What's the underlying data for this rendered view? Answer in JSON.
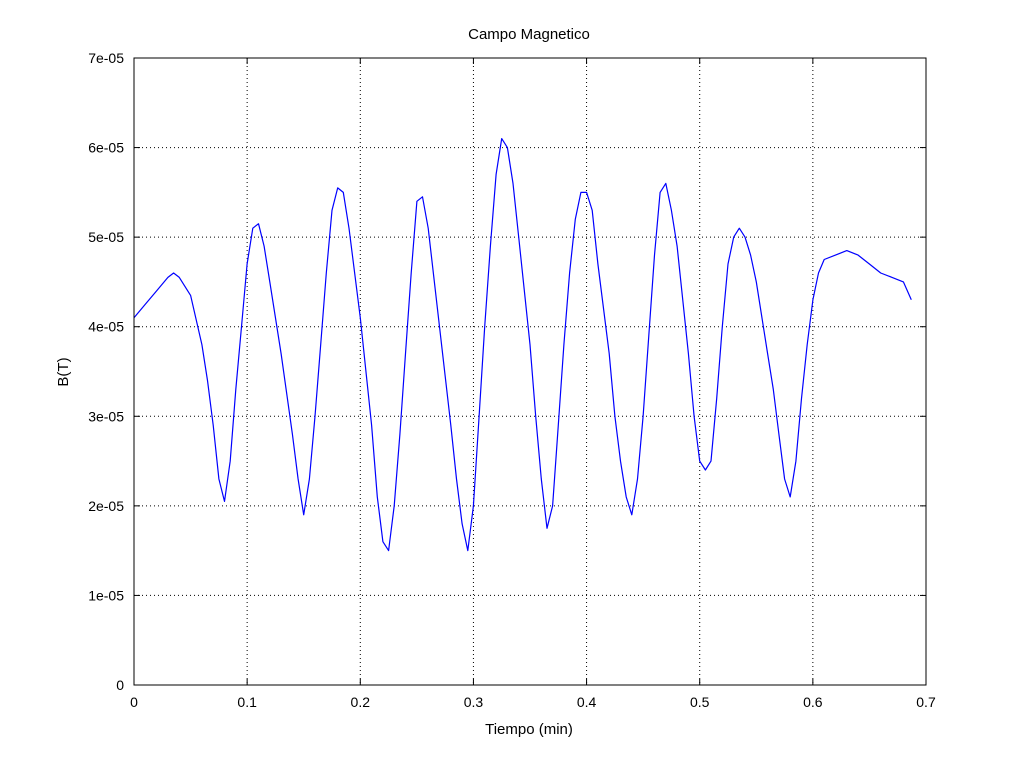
{
  "chart_data": {
    "type": "line",
    "title": "Campo Magnetico",
    "xlabel": "Tiempo (min)",
    "ylabel": "B(T)",
    "xlim": [
      0,
      0.7
    ],
    "ylim": [
      0,
      7e-05
    ],
    "x_ticks": [
      "0",
      "0.1",
      "0.2",
      "0.3",
      "0.4",
      "0.5",
      "0.6",
      "0.7"
    ],
    "y_ticks": [
      "0",
      "1e-05",
      "2e-05",
      "3e-05",
      "4e-05",
      "5e-05",
      "6e-05",
      "7e-05"
    ],
    "grid": true,
    "line_color": "#0000ff",
    "series": [
      {
        "x": [
          0,
          0.01,
          0.02,
          0.03,
          0.035,
          0.04,
          0.05,
          0.06,
          0.065,
          0.07,
          0.075,
          0.08,
          0.085,
          0.09,
          0.095,
          0.1,
          0.105,
          0.11,
          0.115,
          0.12,
          0.13,
          0.14,
          0.145,
          0.15,
          0.155,
          0.16,
          0.165,
          0.17,
          0.175,
          0.18,
          0.185,
          0.19,
          0.2,
          0.21,
          0.215,
          0.22,
          0.225,
          0.23,
          0.235,
          0.24,
          0.245,
          0.25,
          0.255,
          0.26,
          0.27,
          0.28,
          0.285,
          0.29,
          0.295,
          0.3,
          0.305,
          0.31,
          0.315,
          0.32,
          0.325,
          0.33,
          0.335,
          0.34,
          0.35,
          0.355,
          0.36,
          0.365,
          0.37,
          0.375,
          0.38,
          0.385,
          0.39,
          0.395,
          0.4,
          0.405,
          0.41,
          0.42,
          0.425,
          0.43,
          0.435,
          0.44,
          0.445,
          0.45,
          0.455,
          0.46,
          0.465,
          0.47,
          0.475,
          0.48,
          0.49,
          0.495,
          0.5,
          0.505,
          0.51,
          0.515,
          0.52,
          0.525,
          0.53,
          0.535,
          0.54,
          0.545,
          0.55,
          0.56,
          0.565,
          0.57,
          0.575,
          0.58,
          0.585,
          0.59,
          0.595,
          0.6,
          0.605,
          0.61,
          0.62,
          0.63,
          0.64,
          0.65,
          0.66,
          0.67,
          0.68,
          0.687
        ],
        "values": [
          4.1e-05,
          4.25e-05,
          4.4e-05,
          4.55e-05,
          4.6e-05,
          4.55e-05,
          4.35e-05,
          3.8e-05,
          3.4e-05,
          2.9e-05,
          2.3e-05,
          2.05e-05,
          2.5e-05,
          3.3e-05,
          4e-05,
          4.7e-05,
          5.1e-05,
          5.15e-05,
          4.9e-05,
          4.5e-05,
          3.7e-05,
          2.8e-05,
          2.3e-05,
          1.9e-05,
          2.3e-05,
          3e-05,
          3.8e-05,
          4.6e-05,
          5.3e-05,
          5.55e-05,
          5.5e-05,
          5.1e-05,
          4.1e-05,
          2.9e-05,
          2.1e-05,
          1.6e-05,
          1.5e-05,
          2e-05,
          2.8e-05,
          3.7e-05,
          4.6e-05,
          5.4e-05,
          5.45e-05,
          5.1e-05,
          4e-05,
          2.9e-05,
          2.3e-05,
          1.8e-05,
          1.5e-05,
          2e-05,
          3e-05,
          4e-05,
          4.9e-05,
          5.7e-05,
          6.1e-05,
          6e-05,
          5.6e-05,
          5e-05,
          3.8e-05,
          3e-05,
          2.3e-05,
          1.75e-05,
          2e-05,
          2.9e-05,
          3.8e-05,
          4.6e-05,
          5.2e-05,
          5.5e-05,
          5.5e-05,
          5.3e-05,
          4.7e-05,
          3.7e-05,
          3e-05,
          2.5e-05,
          2.1e-05,
          1.9e-05,
          2.3e-05,
          3e-05,
          3.9e-05,
          4.8e-05,
          5.5e-05,
          5.6e-05,
          5.3e-05,
          4.9e-05,
          3.7e-05,
          3e-05,
          2.5e-05,
          2.4e-05,
          2.5e-05,
          3.2e-05,
          4e-05,
          4.7e-05,
          5e-05,
          5.1e-05,
          5e-05,
          4.8e-05,
          4.5e-05,
          3.7e-05,
          3.3e-05,
          2.8e-05,
          2.3e-05,
          2.1e-05,
          2.5e-05,
          3.2e-05,
          3.8e-05,
          4.3e-05,
          4.6e-05,
          4.75e-05,
          4.8e-05,
          4.85e-05,
          4.8e-05,
          4.7e-05,
          4.6e-05,
          4.55e-05,
          4.5e-05,
          4.3e-05
        ]
      }
    ]
  }
}
